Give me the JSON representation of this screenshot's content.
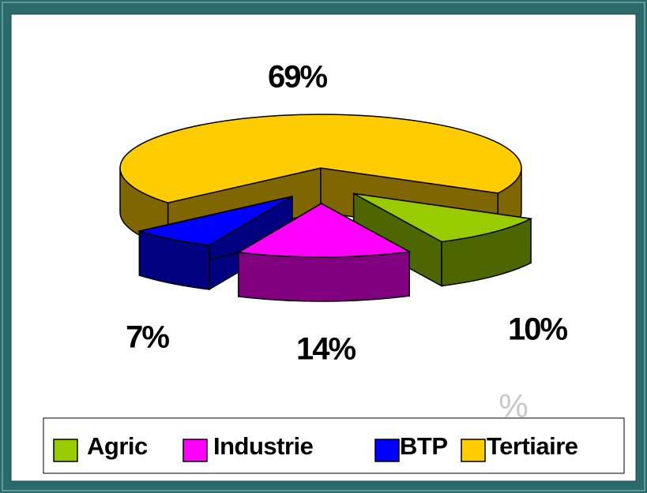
{
  "chart_data": {
    "type": "pie",
    "categories": [
      "Agric",
      "Industrie",
      "BTP",
      "Tertiaire"
    ],
    "values": [
      10,
      14,
      7,
      69
    ],
    "value_labels": [
      "10%",
      "14%",
      "7%",
      "69%"
    ],
    "colors": [
      "#99cc00",
      "#ff00ff",
      "#0000ff",
      "#ffcc00"
    ],
    "annotation": "%",
    "legend": "bottom"
  }
}
